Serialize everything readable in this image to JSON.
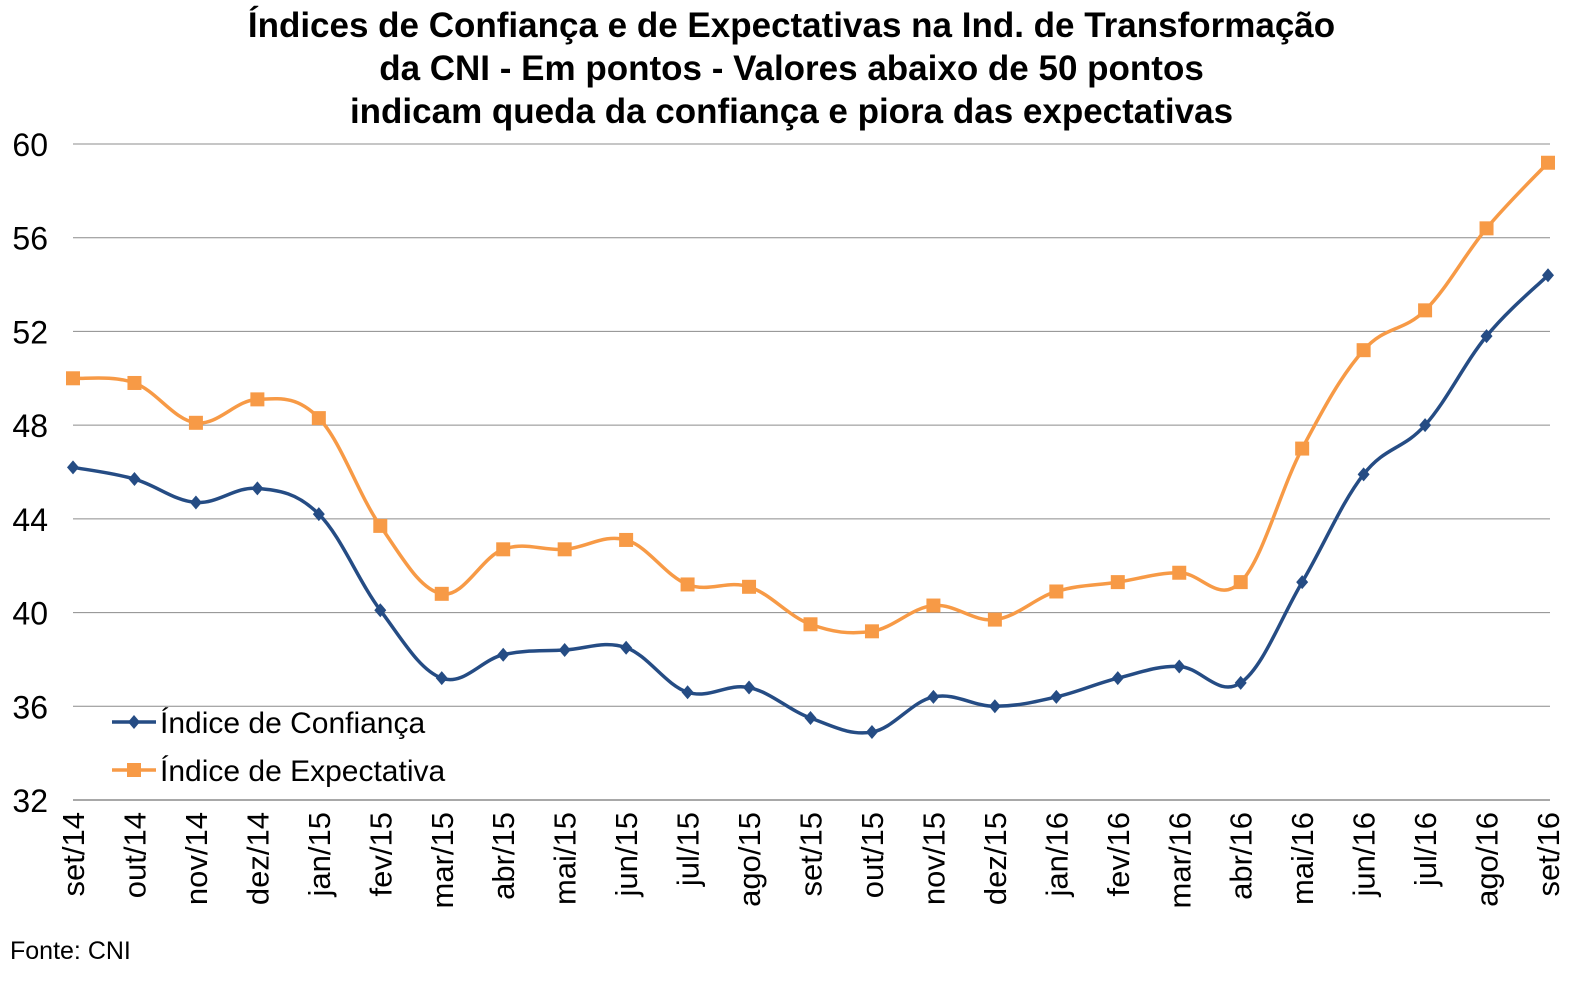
{
  "chart_data": {
    "type": "line",
    "title_lines": [
      "Índices de Confiança e de Expectativas na Ind. de Transformação",
      "da CNI - Em pontos - Valores abaixo de 50 pontos",
      "indicam queda da confiança e piora das expectativas"
    ],
    "categories": [
      "set/14",
      "out/14",
      "nov/14",
      "dez/14",
      "jan/15",
      "fev/15",
      "mar/15",
      "abr/15",
      "mai/15",
      "jun/15",
      "jul/15",
      "ago/15",
      "set/15",
      "out/15",
      "nov/15",
      "dez/15",
      "jan/16",
      "fev/16",
      "mar/16",
      "abr/16",
      "mai/16",
      "jun/16",
      "jul/16",
      "ago/16",
      "set/16"
    ],
    "series": [
      {
        "name": "Índice de Confiança",
        "color": "#254C84",
        "marker": "diamond",
        "values": [
          46.2,
          45.7,
          44.7,
          45.3,
          44.2,
          40.1,
          37.2,
          38.2,
          38.4,
          38.5,
          36.6,
          36.8,
          35.5,
          34.9,
          36.4,
          36.0,
          36.4,
          37.2,
          37.7,
          37.0,
          41.3,
          45.9,
          48.0,
          51.8,
          54.4
        ]
      },
      {
        "name": "Índice de Expectativa",
        "color": "#F79A46",
        "marker": "square",
        "values": [
          50.0,
          49.8,
          48.1,
          49.1,
          48.3,
          43.7,
          40.8,
          42.7,
          42.7,
          43.1,
          41.2,
          41.1,
          39.5,
          39.2,
          40.3,
          39.7,
          40.9,
          41.3,
          41.7,
          41.3,
          47.0,
          51.2,
          52.9,
          56.4,
          59.2
        ]
      }
    ],
    "ylim": [
      32,
      60
    ],
    "yticks": [
      32,
      36,
      40,
      44,
      48,
      52,
      56,
      60
    ],
    "grid": true,
    "legend_position": "bottom-left",
    "source": "Fonte: CNI"
  }
}
